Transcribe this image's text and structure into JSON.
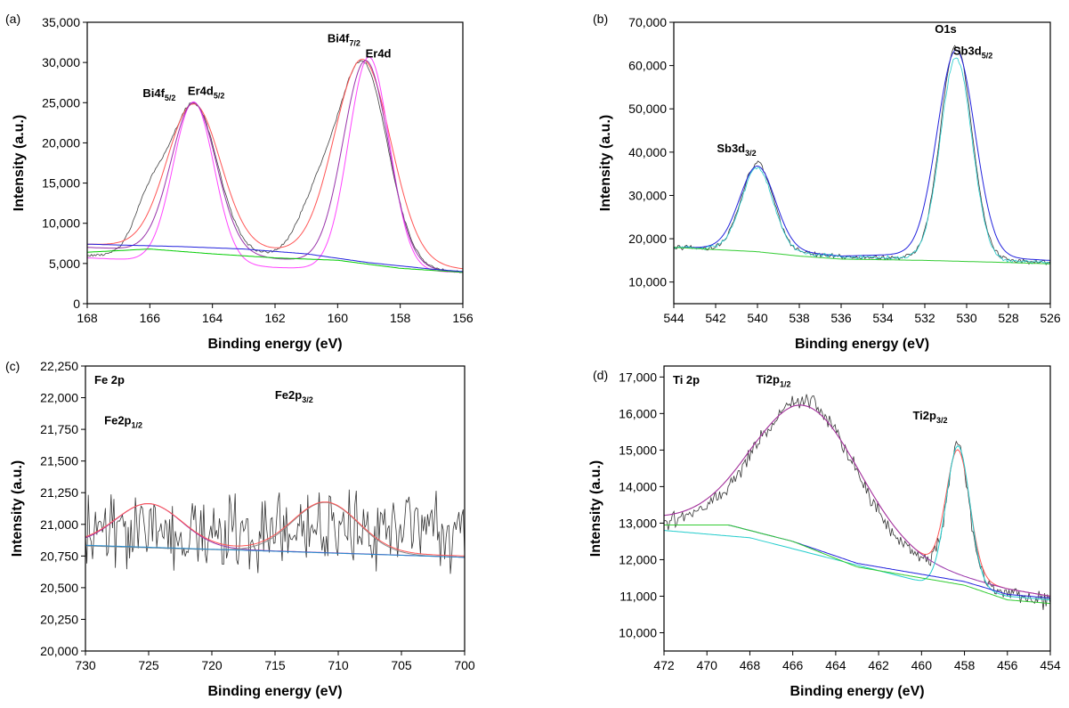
{
  "chart_data": [
    {
      "type": "line",
      "panel_label": "(a)",
      "title": "",
      "xlabel": "Binding energy (eV)",
      "ylabel": "Intensity (a.u.)",
      "xlim": [
        168,
        156
      ],
      "ylim": [
        0,
        35000
      ],
      "x_ticks": [
        168,
        166,
        164,
        162,
        160,
        158,
        156
      ],
      "x_tick_labels": [
        "168",
        "166",
        "164",
        "162",
        "160",
        "158",
        "156"
      ],
      "y_ticks": [
        0,
        5000,
        10000,
        15000,
        20000,
        25000,
        30000,
        35000
      ],
      "y_tick_labels": [
        "0",
        "5,000",
        "10,000",
        "15,000",
        "20,000",
        "25,000",
        "30,000",
        "35,000"
      ],
      "annotations": [
        {
          "text": "Bi4f",
          "sub": "5/2",
          "x": 165.7,
          "y": 25700
        },
        {
          "text": "Er4d",
          "sub": "5/2",
          "x": 164.2,
          "y": 26000
        },
        {
          "text": "Bi4f",
          "sub": "7/2",
          "x": 159.8,
          "y": 32500
        },
        {
          "text": "Er4d",
          "sub": "",
          "x": 158.7,
          "y": 30600
        }
      ],
      "series": [
        {
          "name": "raw",
          "color": "#404040",
          "noise": 200,
          "background": [
            [
              168,
              6000
            ],
            [
              164,
              6400
            ],
            [
              162,
              6000
            ],
            [
              160,
              5300
            ],
            [
              158,
              4300
            ],
            [
              156,
              3900
            ]
          ],
          "peaks": [
            [
              164.6,
              18500,
              0.75
            ],
            [
              166.0,
              6000,
              0.5
            ],
            [
              159.2,
              25000,
              0.8
            ],
            [
              160.7,
              6000,
              0.6
            ]
          ]
        },
        {
          "name": "envelope",
          "color": "#ff5555",
          "noise": 0,
          "background": [
            [
              168,
              7400
            ],
            [
              164,
              7000
            ],
            [
              162,
              6600
            ],
            [
              160,
              6000
            ],
            [
              158,
              5000
            ],
            [
              156,
              4300
            ]
          ],
          "peaks": [
            [
              164.6,
              17800,
              0.85
            ],
            [
              159.2,
              24800,
              0.9
            ]
          ]
        },
        {
          "name": "Bi4f fit",
          "color": "#ff44ff",
          "noise": 0,
          "background": [
            [
              168,
              5700
            ],
            [
              164,
              5000
            ],
            [
              162,
              4500
            ],
            [
              160,
              4300
            ],
            [
              156,
              3900
            ]
          ],
          "peaks": [
            [
              164.6,
              20000,
              0.65
            ],
            [
              159.0,
              26500,
              0.65
            ]
          ]
        },
        {
          "name": "Er4d fit",
          "color": "#9933aa",
          "noise": 0,
          "background": [
            [
              168,
              7000
            ],
            [
              164,
              6400
            ],
            [
              162,
              5600
            ],
            [
              160,
              5000
            ],
            [
              156,
              3900
            ]
          ],
          "peaks": [
            [
              164.6,
              18500,
              0.72
            ],
            [
              159.1,
              25500,
              0.72
            ]
          ]
        },
        {
          "name": "background 1",
          "color": "#00cc00",
          "noise": 0,
          "background": [
            [
              168,
              6400
            ],
            [
              166,
              6800
            ],
            [
              164,
              6200
            ],
            [
              162,
              5700
            ],
            [
              160,
              5400
            ],
            [
              158,
              4400
            ],
            [
              156,
              3900
            ]
          ],
          "peaks": []
        },
        {
          "name": "background 2",
          "color": "#2222dd",
          "noise": 0,
          "background": [
            [
              168,
              7400
            ],
            [
              165,
              7100
            ],
            [
              163,
              6800
            ],
            [
              161,
              6200
            ],
            [
              159,
              5100
            ],
            [
              157,
              4300
            ],
            [
              156,
              4000
            ]
          ],
          "peaks": []
        }
      ]
    },
    {
      "type": "line",
      "panel_label": "(b)",
      "title": "",
      "xlabel": "Binding energy (eV)",
      "ylabel": "Intensity (a.u.)",
      "xlim": [
        544,
        526
      ],
      "ylim": [
        5000,
        70000
      ],
      "x_ticks": [
        544,
        542,
        540,
        538,
        536,
        534,
        532,
        530,
        528,
        526
      ],
      "x_tick_labels": [
        "544",
        "542",
        "540",
        "538",
        "536",
        "534",
        "532",
        "530",
        "528",
        "526"
      ],
      "y_ticks": [
        10000,
        20000,
        30000,
        40000,
        50000,
        60000,
        70000
      ],
      "y_tick_labels": [
        "10,000",
        "20,000",
        "30,000",
        "40,000",
        "50,000",
        "60,000",
        "70,000"
      ],
      "annotations": [
        {
          "text": "Sb3d",
          "sub": "3/2",
          "x": 541.0,
          "y": 40000
        },
        {
          "text": "O1s",
          "sub": "",
          "x": 531.0,
          "y": 67500
        },
        {
          "text": "Sb3d",
          "sub": "5/2",
          "x": 529.7,
          "y": 62500
        }
      ],
      "series": [
        {
          "name": "raw",
          "color": "#333333",
          "noise": 700,
          "background": [
            [
              544,
              18000
            ],
            [
              540,
              17500
            ],
            [
              536,
              15800
            ],
            [
              532,
              15500
            ],
            [
              528,
              15000
            ],
            [
              526,
              14500
            ]
          ],
          "peaks": [
            [
              540.0,
              20000,
              0.75
            ],
            [
              530.5,
              49500,
              0.75
            ]
          ]
        },
        {
          "name": "envelope",
          "color": "#2222dd",
          "noise": 0,
          "background": [
            [
              544,
              18000
            ],
            [
              540,
              17800
            ],
            [
              536,
              16000
            ],
            [
              532,
              16500
            ],
            [
              528,
              15500
            ],
            [
              526,
              15000
            ]
          ],
          "peaks": [
            [
              540.0,
              19000,
              0.85
            ],
            [
              530.5,
              47500,
              0.9
            ]
          ]
        },
        {
          "name": "fit",
          "color": "#22cccc",
          "noise": 500,
          "background": [
            [
              544,
              18000
            ],
            [
              540,
              17500
            ],
            [
              536,
              15800
            ],
            [
              532,
              15500
            ],
            [
              528,
              14800
            ],
            [
              526,
              14500
            ]
          ],
          "peaks": [
            [
              540.0,
              19000,
              0.75
            ],
            [
              530.5,
              46500,
              0.75
            ]
          ]
        },
        {
          "name": "background",
          "color": "#33cc33",
          "noise": 0,
          "background": [
            [
              544,
              18000
            ],
            [
              540,
              17000
            ],
            [
              538,
              16000
            ],
            [
              536,
              15300
            ],
            [
              532,
              15000
            ],
            [
              528,
              14500
            ],
            [
              526,
              14200
            ]
          ],
          "peaks": []
        }
      ]
    },
    {
      "type": "line",
      "panel_label": "(c)",
      "title": "",
      "xlabel": "Binding energy (eV)",
      "ylabel": "Intensity (a.u.)",
      "inner_label": "Fe 2p",
      "xlim": [
        730,
        700
      ],
      "ylim": [
        20000,
        22250
      ],
      "x_ticks": [
        730,
        725,
        720,
        715,
        710,
        705,
        700
      ],
      "x_tick_labels": [
        "730",
        "725",
        "720",
        "715",
        "710",
        "705",
        "700"
      ],
      "y_ticks": [
        20000,
        20250,
        20500,
        20750,
        21000,
        21250,
        21500,
        21750,
        22000,
        22250
      ],
      "y_tick_labels": [
        "20,000",
        "20,250",
        "20,500",
        "20,750",
        "21,000",
        "21,250",
        "21,500",
        "21,750",
        "22,000",
        "22,250"
      ],
      "annotations": [
        {
          "text": "Fe2p",
          "sub": "1/2",
          "x": 727.0,
          "y": 21790
        },
        {
          "text": "Fe2p",
          "sub": "3/2",
          "x": 713.5,
          "y": 21990
        }
      ],
      "series": [
        {
          "name": "raw",
          "color": "#333333",
          "noise": 380,
          "background": [
            [
              730,
              20950
            ],
            [
              700,
              20950
            ]
          ],
          "peaks": []
        },
        {
          "name": "Fe2p1/2 fit",
          "color": "#9933aa",
          "noise": 0,
          "background": [
            [
              730,
              20840
            ],
            [
              700,
              20740
            ]
          ],
          "peaks": [
            [
              725.0,
              340,
              2.6
            ]
          ]
        },
        {
          "name": "Fe2p3/2 fit",
          "color": "#888888",
          "noise": 0,
          "background": [
            [
              730,
              20830
            ],
            [
              700,
              20740
            ]
          ],
          "peaks": [
            [
              711.0,
              400,
              2.6
            ]
          ]
        },
        {
          "name": "envelope",
          "color": "#ff5555",
          "noise": 0,
          "background": [
            [
              730,
              20850
            ],
            [
              700,
              20750
            ]
          ],
          "peaks": [
            [
              725.0,
              330,
              2.6
            ],
            [
              711.0,
              390,
              2.6
            ]
          ]
        },
        {
          "name": "background",
          "color": "#2288cc",
          "noise": 0,
          "background": [
            [
              730,
              20835
            ],
            [
              700,
              20740
            ]
          ],
          "peaks": []
        }
      ]
    },
    {
      "type": "line",
      "panel_label": "(d)",
      "title": "",
      "xlabel": "Binding energy (eV)",
      "ylabel": "Intensity (a.u.)",
      "inner_label": "Ti 2p",
      "xlim": [
        472,
        454
      ],
      "ylim": [
        9500,
        17300
      ],
      "x_ticks": [
        472,
        470,
        468,
        466,
        464,
        462,
        460,
        458,
        456,
        454
      ],
      "x_tick_labels": [
        "472",
        "470",
        "468",
        "466",
        "464",
        "462",
        "460",
        "458",
        "456",
        "454"
      ],
      "y_ticks": [
        10000,
        11000,
        12000,
        13000,
        14000,
        15000,
        16000,
        17000
      ],
      "y_tick_labels": [
        "10,000",
        "11,000",
        "12,000",
        "13,000",
        "14,000",
        "15,000",
        "16,000",
        "17,000"
      ],
      "annotations": [
        {
          "text": "Ti2p",
          "sub": "1/2",
          "x": 466.9,
          "y": 16820
        },
        {
          "text": "Ti2p",
          "sub": "3/2",
          "x": 459.6,
          "y": 15840
        }
      ],
      "series": [
        {
          "name": "raw",
          "color": "#333333",
          "noise": 280,
          "background": [
            [
              472,
              13000
            ],
            [
              468,
              12900
            ],
            [
              466,
              12700
            ],
            [
              462,
              12100
            ],
            [
              460,
              11800
            ],
            [
              458,
              11500
            ],
            [
              456,
              11100
            ],
            [
              454,
              10800
            ]
          ],
          "peaks": [
            [
              465.4,
              3700,
              2.3
            ],
            [
              458.3,
              3600,
              0.5
            ]
          ]
        },
        {
          "name": "envelope",
          "color": "#ff5555",
          "noise": 0,
          "background": [
            [
              472,
              13100
            ],
            [
              468,
              12900
            ],
            [
              466,
              12700
            ],
            [
              462,
              12100
            ],
            [
              460,
              11800
            ],
            [
              458,
              11500
            ],
            [
              456,
              11200
            ],
            [
              454,
              11000
            ]
          ],
          "peaks": [
            [
              465.4,
              3600,
              2.5
            ],
            [
              458.3,
              3400,
              0.55
            ]
          ]
        },
        {
          "name": "Ti2p1/2 fit",
          "color": "#9933aa",
          "noise": 0,
          "background": [
            [
              472,
              13100
            ],
            [
              468,
              12900
            ],
            [
              466,
              12700
            ],
            [
              462,
              12100
            ],
            [
              460,
              11800
            ],
            [
              458,
              11500
            ],
            [
              456,
              11200
            ],
            [
              454,
              11000
            ]
          ],
          "peaks": [
            [
              465.4,
              3600,
              2.5
            ]
          ]
        },
        {
          "name": "Ti2p3/2 fit",
          "color": "#22cccc",
          "noise": 0,
          "background": [
            [
              472,
              12800
            ],
            [
              468,
              12600
            ],
            [
              464,
              12000
            ],
            [
              460,
              11400
            ],
            [
              458,
              11300
            ],
            [
              456,
              11000
            ],
            [
              454,
              10900
            ]
          ],
          "peaks": [
            [
              458.3,
              3800,
              0.55
            ]
          ]
        },
        {
          "name": "background 1",
          "color": "#2222dd",
          "noise": 0,
          "background": [
            [
              472,
              12950
            ],
            [
              469,
              12950
            ],
            [
              466,
              12500
            ],
            [
              463,
              11900
            ],
            [
              460,
              11600
            ],
            [
              458,
              11400
            ],
            [
              456,
              11050
            ],
            [
              454,
              10950
            ]
          ],
          "peaks": []
        },
        {
          "name": "background 2",
          "color": "#33cc33",
          "noise": 0,
          "background": [
            [
              472,
              12950
            ],
            [
              469,
              12950
            ],
            [
              466,
              12500
            ],
            [
              463,
              11800
            ],
            [
              460,
              11500
            ],
            [
              458,
              11300
            ],
            [
              456,
              10900
            ],
            [
              454,
              10800
            ]
          ],
          "peaks": []
        }
      ]
    }
  ]
}
